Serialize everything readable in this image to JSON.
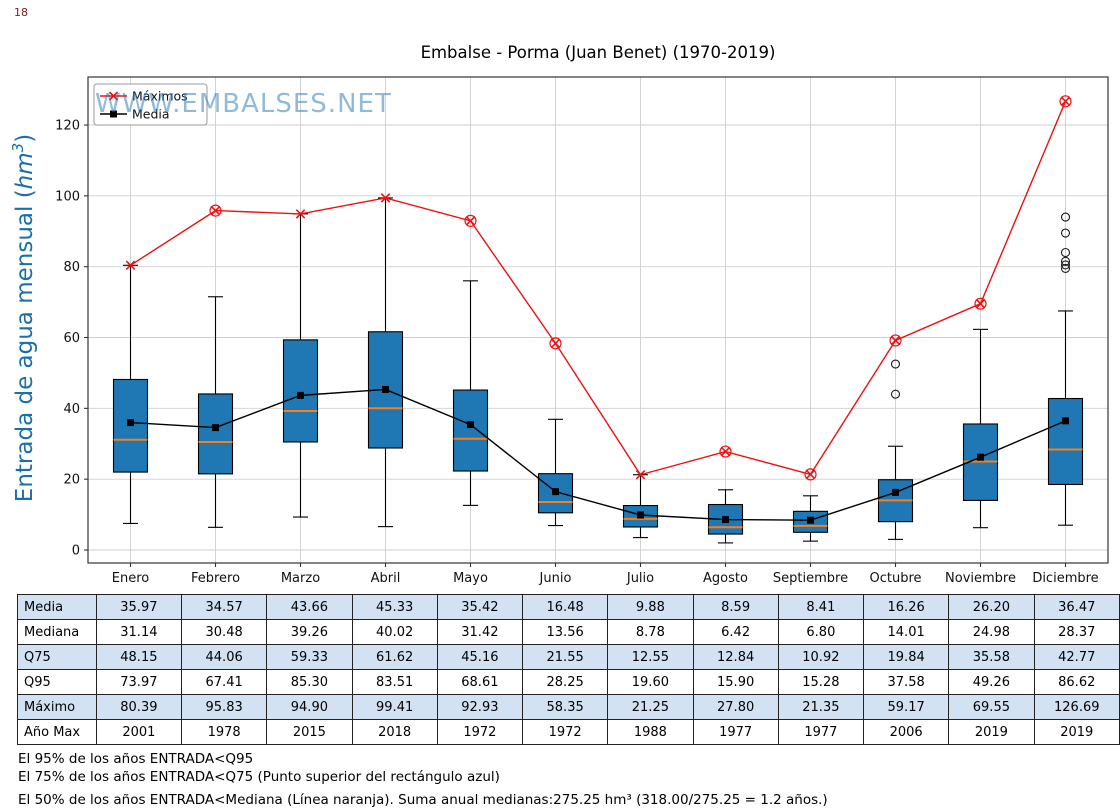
{
  "corner_number": "18",
  "watermark": "WWW.EMBALSES.NET",
  "legend": {
    "maximos": "Máximos",
    "media": "Media"
  },
  "colors": {
    "box": "#1f77b4",
    "median": "#ff7f0e",
    "max": "#ee1111",
    "mean": "#000000",
    "ylabel": "#1b6fa8",
    "grid": "#cfcfcf",
    "table_alt": "#d3e2f3",
    "watermark": "#1f77b4"
  },
  "chart_data": {
    "type": "box",
    "title": "Embalse - Porma (Juan Benet) (1970-2019)",
    "ylabel": "Entrada de agua mensual (hm³)",
    "ylabel_parts": {
      "pre": "Entrada de agua mensual (",
      "math": "hm",
      "sup": "3",
      "post": ")"
    },
    "xlabel": "",
    "ylim": [
      -3.7,
      133.5
    ],
    "yticks": [
      0,
      20,
      40,
      60,
      80,
      100,
      120
    ],
    "grid": true,
    "legend_position": "upper-left",
    "categories": [
      "Enero",
      "Febrero",
      "Marzo",
      "Abril",
      "Mayo",
      "Junio",
      "Julio",
      "Agosto",
      "Septiembre",
      "Octubre",
      "Noviembre",
      "Diciembre"
    ],
    "series": [
      {
        "name": "Máximos",
        "marker": "x",
        "color": "#ee1111",
        "key": "max"
      },
      {
        "name": "Media",
        "marker": "square",
        "color": "#000000",
        "key": "mean"
      }
    ],
    "months": [
      {
        "name": "Enero",
        "mean": 35.97,
        "median": 31.14,
        "q75": 48.15,
        "q95": 73.97,
        "max": 80.39,
        "year": 2001,
        "q25": 22.0,
        "wlo": 7.5,
        "whi": 80.39,
        "outliers": []
      },
      {
        "name": "Febrero",
        "mean": 34.57,
        "median": 30.48,
        "q75": 44.06,
        "q95": 67.41,
        "max": 95.83,
        "year": 1978,
        "q25": 21.5,
        "wlo": 6.4,
        "whi": 71.5,
        "outliers": []
      },
      {
        "name": "Marzo",
        "mean": 43.66,
        "median": 39.26,
        "q75": 59.33,
        "q95": 85.3,
        "max": 94.9,
        "year": 2015,
        "q25": 30.5,
        "wlo": 9.3,
        "whi": 94.9,
        "outliers": []
      },
      {
        "name": "Abril",
        "mean": 45.33,
        "median": 40.02,
        "q75": 61.62,
        "q95": 83.51,
        "max": 99.41,
        "year": 2018,
        "q25": 28.8,
        "wlo": 6.6,
        "whi": 99.41,
        "outliers": []
      },
      {
        "name": "Mayo",
        "mean": 35.42,
        "median": 31.42,
        "q75": 45.16,
        "q95": 68.61,
        "max": 92.93,
        "year": 1972,
        "q25": 22.3,
        "wlo": 12.6,
        "whi": 76.0,
        "outliers": []
      },
      {
        "name": "Junio",
        "mean": 16.48,
        "median": 13.56,
        "q75": 21.55,
        "q95": 28.25,
        "max": 58.35,
        "year": 1972,
        "q25": 10.5,
        "wlo": 6.9,
        "whi": 36.9,
        "outliers": []
      },
      {
        "name": "Julio",
        "mean": 9.88,
        "median": 8.78,
        "q75": 12.55,
        "q95": 19.6,
        "max": 21.25,
        "year": 1988,
        "q25": 6.5,
        "wlo": 3.5,
        "whi": 21.25,
        "outliers": []
      },
      {
        "name": "Agosto",
        "mean": 8.59,
        "median": 6.42,
        "q75": 12.84,
        "q95": 15.9,
        "max": 27.8,
        "year": 1977,
        "q25": 4.5,
        "wlo": 2.0,
        "whi": 17.0,
        "outliers": []
      },
      {
        "name": "Septiembre",
        "mean": 8.41,
        "median": 6.8,
        "q75": 10.92,
        "q95": 15.28,
        "max": 21.35,
        "year": 1977,
        "q25": 5.0,
        "wlo": 2.5,
        "whi": 15.3,
        "outliers": []
      },
      {
        "name": "Octubre",
        "mean": 16.26,
        "median": 14.01,
        "q75": 19.84,
        "q95": 37.58,
        "max": 59.17,
        "year": 2006,
        "q25": 8.0,
        "wlo": 3.0,
        "whi": 29.3,
        "outliers": [
          44.0,
          52.5
        ]
      },
      {
        "name": "Noviembre",
        "mean": 26.2,
        "median": 24.98,
        "q75": 35.58,
        "q95": 49.26,
        "max": 69.55,
        "year": 2019,
        "q25": 14.0,
        "wlo": 6.3,
        "whi": 62.3,
        "outliers": []
      },
      {
        "name": "Diciembre",
        "mean": 36.47,
        "median": 28.37,
        "q75": 42.77,
        "q95": 86.62,
        "max": 126.69,
        "year": 2019,
        "q25": 18.5,
        "wlo": 7.0,
        "whi": 67.5,
        "outliers": [
          79.5,
          80.5,
          81.5,
          84.0,
          89.5,
          94.0
        ]
      }
    ]
  },
  "table": {
    "rows": [
      {
        "label": "Media",
        "key": "mean",
        "decimals": 2
      },
      {
        "label": "Mediana",
        "key": "median",
        "decimals": 2
      },
      {
        "label": "Q75",
        "key": "q75",
        "decimals": 2
      },
      {
        "label": "Q95",
        "key": "q95",
        "decimals": 2
      },
      {
        "label": "Máximo",
        "key": "max",
        "decimals": 2
      },
      {
        "label": "Año Max",
        "key": "year",
        "decimals": 0
      }
    ]
  },
  "notes": [
    "El 95% de los años ENTRADA<Q95",
    "El 75% de los años ENTRADA<Q75 (Punto superior del rectángulo azul)",
    "El 50% de los años ENTRADA<Mediana (Línea naranja). Suma anual medianas:275.25 hm³ (318.00/275.25 = 1.2 años.)"
  ]
}
